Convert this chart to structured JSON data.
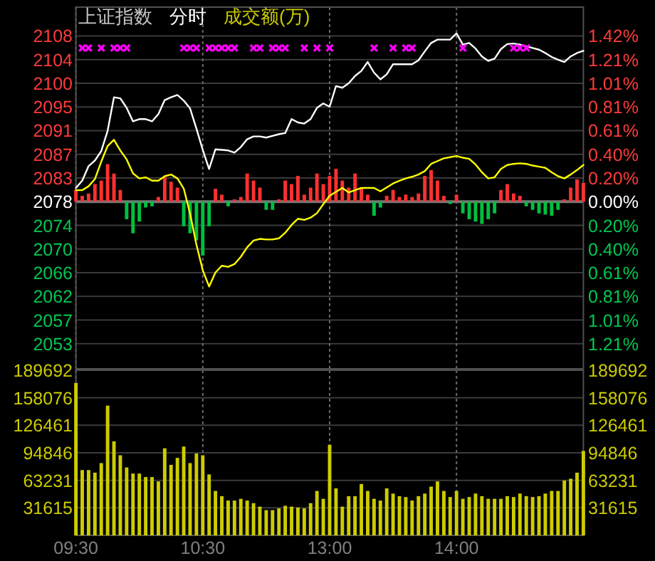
{
  "chart_data": [
    {
      "type": "line",
      "title": "上证指数",
      "subtitle": "分时",
      "categories": [
        null,
        null,
        null,
        null,
        null,
        null,
        null,
        null,
        null,
        null,
        null,
        null,
        null,
        null,
        null,
        null,
        null,
        null,
        null,
        null,
        null,
        null,
        null,
        null,
        null,
        null,
        null,
        null,
        null,
        null,
        null,
        null,
        null,
        null,
        null,
        null,
        null,
        null,
        null,
        null,
        null,
        null,
        null,
        null,
        null,
        null,
        null,
        null,
        null,
        null,
        null,
        null,
        null,
        null,
        null,
        null,
        null,
        null,
        null,
        null,
        null,
        null,
        null,
        null,
        null,
        null,
        null,
        null,
        null,
        null,
        null,
        null,
        null,
        null,
        null,
        null,
        null,
        null,
        null,
        null,
        null
      ],
      "ylim": [
        2048.6,
        2113.2
      ],
      "yticks": [
        {
          "value": 2053.07,
          "label": "2053"
        },
        {
          "value": 2057.3,
          "label": "2057"
        },
        {
          "value": 2061.53,
          "label": "2062"
        },
        {
          "value": 2065.76,
          "label": "2066"
        },
        {
          "value": 2069.99,
          "label": "2070"
        },
        {
          "value": 2074.22,
          "label": "2074"
        },
        {
          "value": 2078.45,
          "label": "2078"
        },
        {
          "value": 2082.68,
          "label": "2083"
        },
        {
          "value": 2086.91,
          "label": "2087"
        },
        {
          "value": 2091.14,
          "label": "2091"
        },
        {
          "value": 2095.37,
          "label": "2095"
        },
        {
          "value": 2099.6,
          "label": "2100"
        },
        {
          "value": 2103.83,
          "label": "2104"
        },
        {
          "value": 2108.06,
          "label": "2108"
        }
      ],
      "y2lim": [
        -1.4276,
        1.6619
      ],
      "y2ticks": [
        {
          "value": -1.2138,
          "label": "1.21%"
        },
        {
          "value": -1.0115,
          "label": "1.01%"
        },
        {
          "value": -0.8092,
          "label": "0.81%"
        },
        {
          "value": -0.6069,
          "label": "0.61%"
        },
        {
          "value": -0.4046,
          "label": "0.40%"
        },
        {
          "value": -0.2023,
          "label": "0.20%"
        },
        {
          "value": 0,
          "label": "0.00%"
        },
        {
          "value": 0.2023,
          "label": "0.20%"
        },
        {
          "value": 0.4046,
          "label": "0.40%"
        },
        {
          "value": 0.6069,
          "label": "0.61%"
        },
        {
          "value": 0.8092,
          "label": "0.81%"
        },
        {
          "value": 1.0115,
          "label": "1.01%"
        },
        {
          "value": 1.2138,
          "label": "1.21%"
        },
        {
          "value": 1.4161,
          "label": "1.42%"
        }
      ],
      "grid": true,
      "tick_labels": "y",
      "ref_lines": [
        {
          "axis": "y2",
          "value": 0
        }
      ],
      "series": [
        {
          "type": "bar",
          "axis": "y2",
          "values": [
            0.1,
            0.05,
            0.07,
            0.15,
            0.18,
            0.32,
            0.24,
            0.1,
            -0.15,
            -0.27,
            -0.17,
            -0.05,
            -0.04,
            0.04,
            0.21,
            0.17,
            0.12,
            -0.21,
            -0.27,
            -0.33,
            -0.46,
            -0.21,
            0.11,
            0.06,
            -0.04,
            0.02,
            0.04,
            0.24,
            0.18,
            0.12,
            -0.07,
            -0.07,
            0.02,
            0.18,
            0.15,
            0.22,
            0.06,
            0.12,
            0.24,
            0.15,
            0.22,
            0.28,
            0.18,
            0.12,
            0.24,
            0.12,
            0.06,
            -0.12,
            -0.05,
            0.05,
            0.1,
            0.04,
            0.06,
            0.04,
            0.07,
            0.22,
            0.27,
            0.18,
            0.05,
            -0.02,
            0.06,
            -0.1,
            -0.15,
            -0.17,
            -0.19,
            -0.15,
            -0.1,
            0.1,
            0.15,
            0.07,
            0.05,
            -0.04,
            -0.07,
            -0.1,
            -0.11,
            -0.12,
            -0.07,
            0.02,
            0.12,
            0.19,
            0.16
          ],
          "colors": [
            "#ff3030",
            "#ff3030",
            "#ff3030",
            "#ff3030",
            "#ff3030",
            "#ff3030",
            "#ff3030",
            "#ff3030",
            "#00c040",
            "#00c040",
            "#00c040",
            "#00c040",
            "#00c040",
            "#ff3030",
            "#ff3030",
            "#ff3030",
            "#ff3030",
            "#00c040",
            "#00c040",
            "#00c040",
            "#00c040",
            "#00c040",
            "#ff3030",
            "#ff3030",
            "#00c040",
            "#ff3030",
            "#ff3030",
            "#ff3030",
            "#ff3030",
            "#ff3030",
            "#00c040",
            "#00c040",
            "#ff3030",
            "#ff3030",
            "#ff3030",
            "#ff3030",
            "#ff3030",
            "#ff3030",
            "#ff3030",
            "#ff3030",
            "#ff3030",
            "#ff3030",
            "#ff3030",
            "#ff3030",
            "#ff3030",
            "#ff3030",
            "#ff3030",
            "#00c040",
            "#00c040",
            "#ff3030",
            "#ff3030",
            "#ff3030",
            "#ff3030",
            "#ff3030",
            "#ff3030",
            "#ff3030",
            "#ff3030",
            "#ff3030",
            "#ff3030",
            "#00c040",
            "#ff3030",
            "#00c040",
            "#00c040",
            "#00c040",
            "#00c040",
            "#00c040",
            "#00c040",
            "#ff3030",
            "#ff3030",
            "#ff3030",
            "#ff3030",
            "#00c040",
            "#00c040",
            "#00c040",
            "#00c040",
            "#00c040",
            "#00c040",
            "#ff3030",
            "#ff3030",
            "#ff3030",
            "#ff3030"
          ]
        },
        {
          "color": "#ffffff",
          "values": [
            2080.9,
            2082.2,
            2084.8,
            2085.8,
            2087.5,
            2091.1,
            2097.1,
            2096.9,
            2095.2,
            2092.8,
            2093.2,
            2093.2,
            2092.8,
            2094.1,
            2096.6,
            2097.1,
            2097.5,
            2096.5,
            2095.1,
            2091.5,
            2087.7,
            2084.3,
            2087.8,
            2087.7,
            2087.6,
            2087.2,
            2088.2,
            2089.6,
            2090.1,
            2090.1,
            2089.9,
            2090.2,
            2090.5,
            2090.7,
            2093.2,
            2092.6,
            2092.4,
            2093.2,
            2095.2,
            2096.0,
            2095.4,
            2099.1,
            2098.8,
            2099.6,
            2100.9,
            2101.8,
            2103.4,
            2101.5,
            2100.3,
            2101.2,
            2103.0,
            2103.0,
            2103.0,
            2103.0,
            2103.7,
            2105.3,
            2106.8,
            2107.4,
            2107.4,
            2107.4,
            2108.5,
            2106.5,
            2106.8,
            2105.8,
            2104.4,
            2103.6,
            2104.0,
            2105.7,
            2106.6,
            2106.7,
            2106.5,
            2106.2,
            2105.9,
            2105.6,
            2105.0,
            2104.3,
            2103.8,
            2103.4,
            2104.4,
            2105.0,
            2105.4
          ]
        },
        {
          "color": "#ffff00",
          "values": [
            2080.5,
            2080.5,
            2081.2,
            2082.5,
            2085.6,
            2088.4,
            2089.5,
            2087.6,
            2086.0,
            2083.5,
            2082.6,
            2082.8,
            2082.2,
            2082.2,
            2083.0,
            2083.3,
            2082.6,
            2080.8,
            2076.3,
            2070.8,
            2066.2,
            2063.3,
            2065.8,
            2067.0,
            2066.8,
            2067.3,
            2068.6,
            2070.3,
            2071.5,
            2071.8,
            2071.7,
            2071.7,
            2071.9,
            2072.9,
            2074.3,
            2075.4,
            2075.2,
            2075.6,
            2076.4,
            2078.0,
            2079.5,
            2080.2,
            2080.9,
            2080.1,
            2080.5,
            2080.9,
            2080.9,
            2080.9,
            2080.3,
            2081.0,
            2081.7,
            2082.2,
            2082.6,
            2082.9,
            2083.3,
            2083.9,
            2085.2,
            2085.7,
            2086.2,
            2086.4,
            2086.6,
            2086.3,
            2086.1,
            2085.1,
            2083.7,
            2082.6,
            2082.8,
            2084.3,
            2085.0,
            2085.2,
            2085.3,
            2085.2,
            2084.9,
            2084.7,
            2084.5,
            2083.7,
            2083.0,
            2082.6,
            2083.3,
            2084.1,
            2085.0
          ]
        },
        {
          "type": "scatter",
          "marker": "cross",
          "color": "#ff00ff",
          "values": [
            null,
            2105.9,
            2105.9,
            null,
            2105.9,
            null,
            2105.9,
            2105.9,
            2105.9,
            null,
            null,
            null,
            null,
            null,
            null,
            null,
            null,
            2105.9,
            2105.9,
            2105.9,
            null,
            2105.9,
            2105.9,
            2105.9,
            2105.9,
            2105.9,
            null,
            null,
            2105.9,
            2105.9,
            null,
            2105.9,
            2105.9,
            2105.9,
            null,
            null,
            2105.9,
            null,
            2105.9,
            null,
            2105.9,
            null,
            null,
            null,
            null,
            null,
            null,
            2105.9,
            null,
            null,
            2105.9,
            null,
            2105.9,
            2105.9,
            null,
            null,
            null,
            null,
            null,
            null,
            null,
            2105.9,
            null,
            null,
            null,
            null,
            null,
            null,
            null,
            2105.9,
            2105.9,
            2105.9,
            null,
            null,
            null,
            null,
            null,
            null,
            null,
            null,
            null
          ]
        }
      ]
    },
    {
      "type": "bar",
      "title": "成交额(万)",
      "color": "#cccc00",
      "categories": [
        "09:30",
        null,
        null,
        null,
        null,
        null,
        null,
        null,
        null,
        null,
        null,
        null,
        null,
        null,
        null,
        null,
        null,
        null,
        null,
        null,
        "10:30",
        null,
        null,
        null,
        null,
        null,
        null,
        null,
        null,
        null,
        null,
        null,
        null,
        null,
        null,
        null,
        null,
        null,
        null,
        null,
        "13:00",
        null,
        null,
        null,
        null,
        null,
        null,
        null,
        null,
        null,
        null,
        null,
        null,
        null,
        null,
        null,
        null,
        null,
        null,
        null,
        "14:00",
        null,
        null,
        null,
        null,
        null,
        null,
        null,
        null,
        null,
        null,
        null,
        null,
        null,
        null,
        null,
        null,
        null,
        null,
        null,
        null
      ],
      "ylim": [
        0,
        189692
      ],
      "yticks": [
        31615,
        63231,
        94846,
        126461,
        158076,
        189692
      ],
      "y2lim": [
        0,
        189692
      ],
      "y2ticks": [
        31615,
        63231,
        94846,
        126461,
        158076,
        189692
      ],
      "grid": true,
      "values": [
        175000,
        75000,
        75000,
        72000,
        83000,
        149000,
        108000,
        92000,
        78000,
        71000,
        71000,
        67000,
        67000,
        62000,
        100000,
        81000,
        89000,
        102000,
        83000,
        94000,
        92000,
        70000,
        51000,
        45000,
        40000,
        40000,
        42000,
        40000,
        37000,
        33000,
        29000,
        29000,
        31000,
        34000,
        33000,
        32000,
        31000,
        37000,
        51000,
        42000,
        104000,
        54000,
        33000,
        45000,
        45000,
        59000,
        51000,
        42000,
        40000,
        54000,
        48000,
        45000,
        44000,
        40000,
        45000,
        48000,
        56000,
        62000,
        51000,
        44000,
        51000,
        42000,
        44000,
        48000,
        45000,
        42000,
        42000,
        42000,
        45000,
        44000,
        48000,
        45000,
        44000,
        45000,
        48000,
        51000,
        51000,
        63000,
        65000,
        72000,
        97000
      ]
    }
  ]
}
